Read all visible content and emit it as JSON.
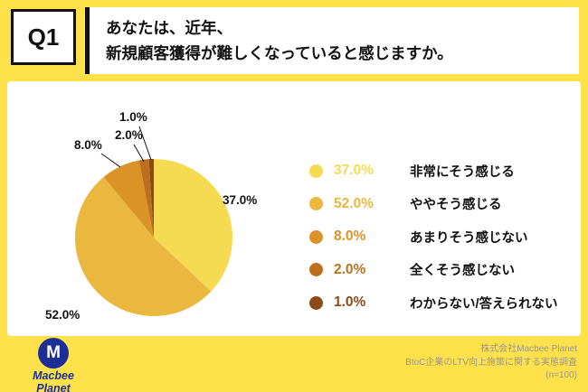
{
  "header": {
    "question_no": "Q1",
    "title_line1": "あなたは、近年、",
    "title_line2": "新規顧客獲得が難しくなっていると感じますか。"
  },
  "chart_data": {
    "type": "pie",
    "title": "あなたは、近年、新規顧客獲得が難しくなっていると感じますか。",
    "start_angle_deg": -90,
    "direction": "clockwise",
    "legend_position": "right",
    "n": 100,
    "slices": [
      {
        "label": "非常にそう感じる",
        "value": 37.0,
        "pct_label": "37.0%",
        "color": "#F6DB52"
      },
      {
        "label": "ややそう感じる",
        "value": 52.0,
        "pct_label": "52.0%",
        "color": "#EAB83F"
      },
      {
        "label": "あまりそう感じない",
        "value": 8.0,
        "pct_label": "8.0%",
        "color": "#DB9226"
      },
      {
        "label": "全くそう感じない",
        "value": 2.0,
        "pct_label": "2.0%",
        "color": "#BD6F1E"
      },
      {
        "label": "わからない/答えられない",
        "value": 1.0,
        "pct_label": "1.0%",
        "color": "#8A4B1B"
      }
    ]
  },
  "footer": {
    "logo_mark": "M",
    "logo_text_line1": "Macbee",
    "logo_text_line2": "Planet",
    "credit_line1": "株式会社Macbee Planet",
    "credit_line2": "BtoC企業のLTV向上施策に関する実態調査",
    "credit_line3": "(n=100)"
  },
  "colors": {
    "background": "#FFE24B",
    "card": "#FFFFFF",
    "logo_blue": "#1D2F96",
    "credit_gray": "#98968C"
  }
}
